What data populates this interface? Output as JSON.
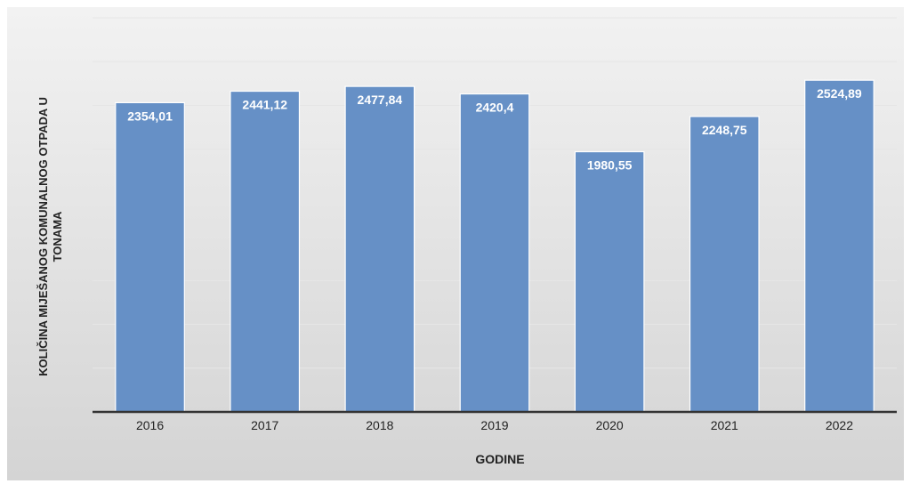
{
  "colors": {
    "bar": "#6690c6",
    "bar_edge": "#ffffff",
    "label_text": "#ffffff",
    "axis_text": "#222222",
    "background_light": "#f2f2f2",
    "background_dark": "#d4d4d4"
  },
  "chart_data": {
    "type": "bar",
    "title": "",
    "xlabel": "GODINE",
    "ylabel_lines": [
      "KOLIČINA MIJEŠANOG KOMUNALNOG OTPADA U",
      "TONAMA"
    ],
    "categories": [
      "2016",
      "2017",
      "2018",
      "2019",
      "2020",
      "2021",
      "2022"
    ],
    "values": [
      2354.01,
      2441.12,
      2477.84,
      2420.4,
      1980.55,
      2248.75,
      2524.89
    ],
    "value_labels": [
      "2354,01",
      "2441,12",
      "2477,84",
      "2420,4",
      "1980,55",
      "2248,75",
      "2524,89"
    ],
    "ylim": [
      0,
      3000
    ],
    "grid": true,
    "legend": "none"
  }
}
